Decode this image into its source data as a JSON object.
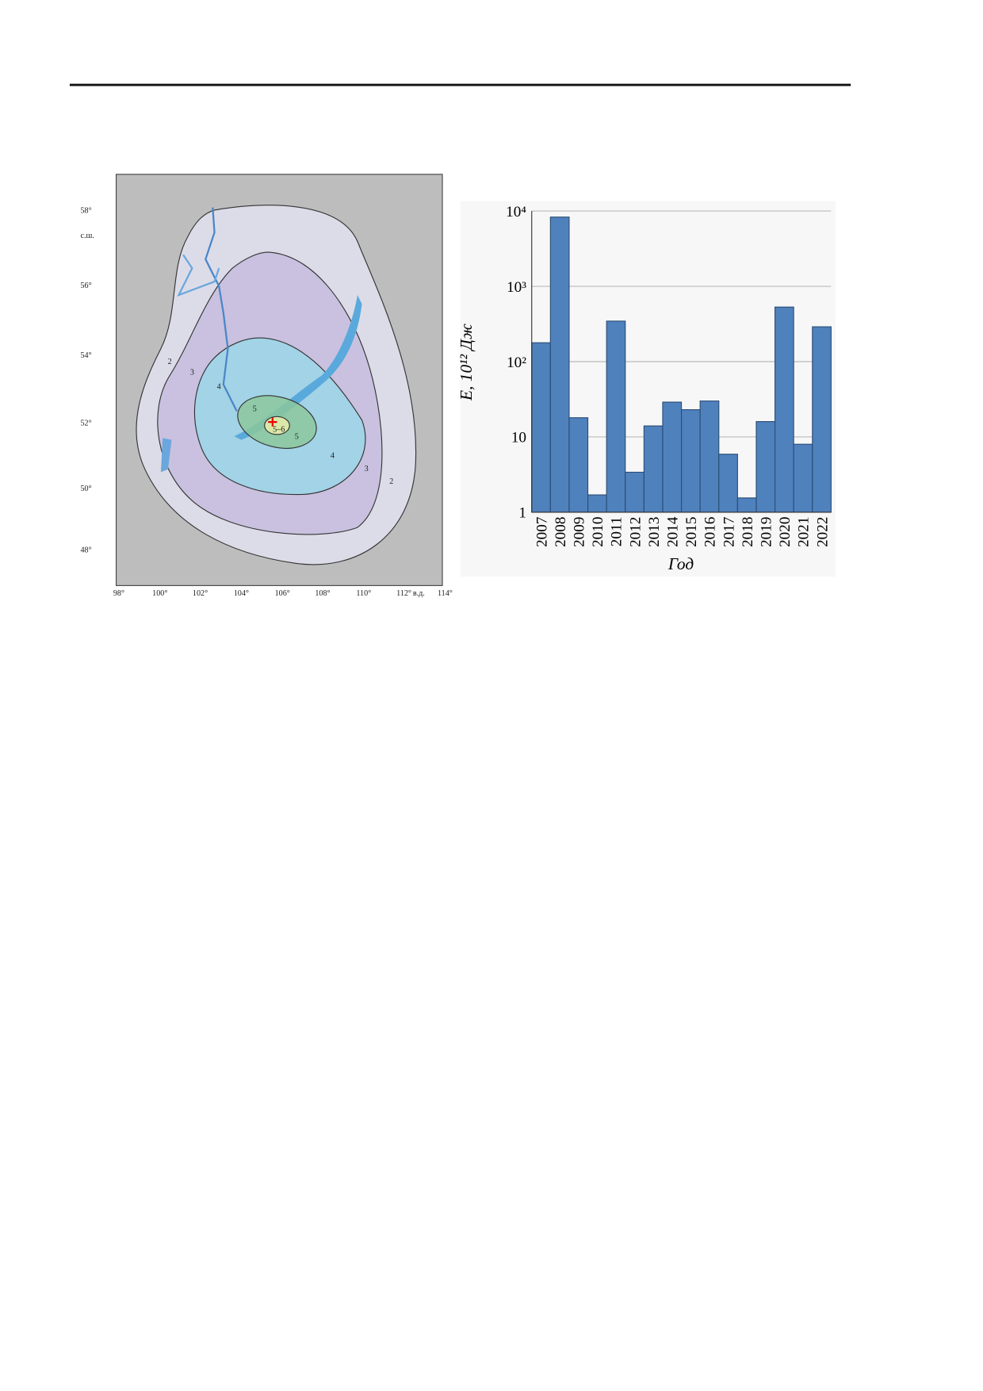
{
  "map": {
    "lat_labels": [
      "58°",
      "56°",
      "54°",
      "52°",
      "50°",
      "48°"
    ],
    "lat_unit": "с.ш.",
    "lon_labels": [
      "98°",
      "100°",
      "102°",
      "104°",
      "106°",
      "108°",
      "110°",
      "112°",
      "114°"
    ],
    "lon_unit": "в.д.",
    "contour_labels": [
      "2",
      "3",
      "4",
      "5",
      "5–6",
      "5",
      "4",
      "3",
      "2"
    ]
  },
  "chart_data": {
    "type": "bar",
    "ylabel": "E, 10¹² Дж",
    "xlabel": "Год",
    "categories": [
      "2007",
      "2008",
      "2009",
      "2010",
      "2011",
      "2012",
      "2013",
      "2014",
      "2015",
      "2016",
      "2017",
      "2018",
      "2019",
      "2020",
      "2021",
      "2022"
    ],
    "values": [
      178,
      8300,
      18,
      1.7,
      345,
      3.4,
      14,
      29,
      23,
      30,
      5.9,
      1.55,
      16,
      530,
      8,
      290
    ],
    "color": "#4f81bd",
    "log": true,
    "grid": true,
    "ylim": [
      1,
      10000
    ],
    "yticks": [
      1,
      10,
      {
        "value": 100,
        "label": "10²"
      },
      {
        "value": 1000,
        "label": "10³"
      },
      {
        "value": 10000,
        "label": "10⁴"
      }
    ]
  }
}
